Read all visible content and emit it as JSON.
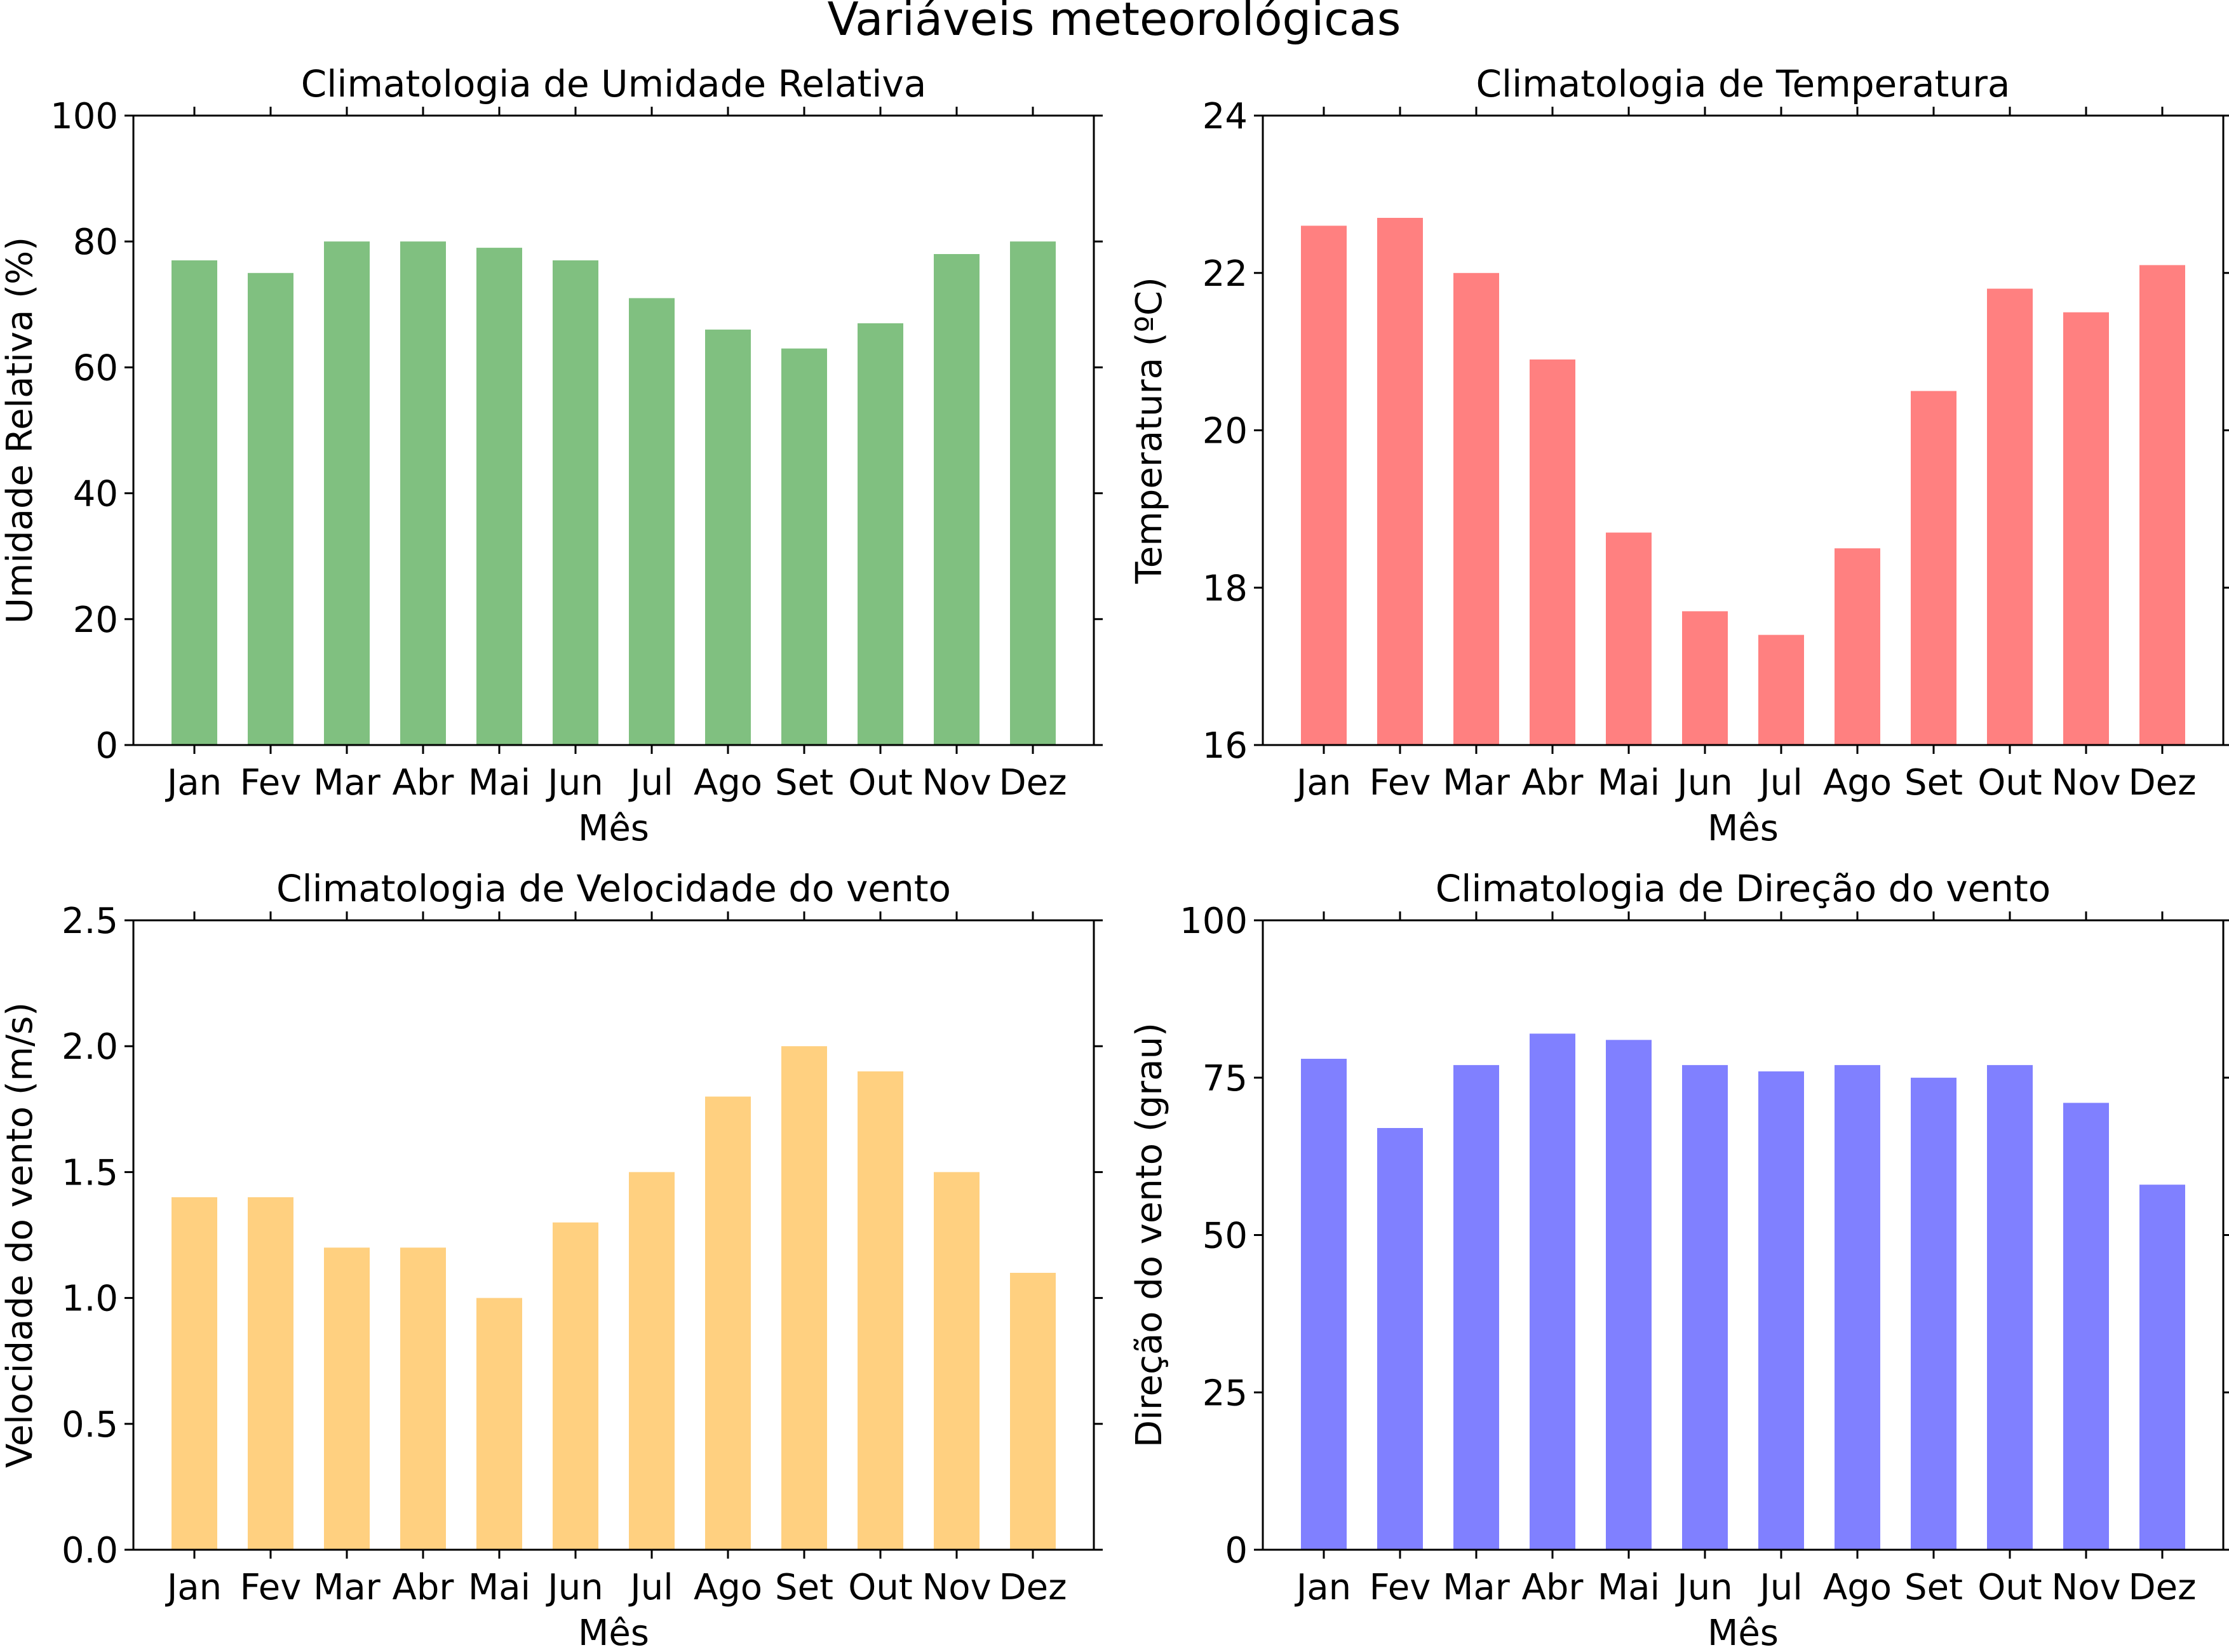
{
  "figure": {
    "title": "Variáveis meteorológicas"
  },
  "chart_data": [
    {
      "type": "bar",
      "title": "Climatologia de Umidade Relativa",
      "xlabel": "Mês",
      "ylabel": "Umidade Relativa (%)",
      "categories": [
        "Jan",
        "Fev",
        "Mar",
        "Abr",
        "Mai",
        "Jun",
        "Jul",
        "Ago",
        "Set",
        "Out",
        "Nov",
        "Dez"
      ],
      "values": [
        77,
        75,
        80,
        80,
        79,
        77,
        71,
        66,
        63,
        67,
        78,
        80
      ],
      "ylim": [
        0,
        100
      ],
      "yticks": [
        0,
        20,
        40,
        60,
        80,
        100
      ],
      "ytick_labels": [
        "0",
        "20",
        "40",
        "60",
        "80",
        "100"
      ],
      "color": "#80c080",
      "grid": false
    },
    {
      "type": "bar",
      "title": "Climatologia de Temperatura",
      "xlabel": "Mês",
      "ylabel": "Temperatura (ºC)",
      "categories": [
        "Jan",
        "Fev",
        "Mar",
        "Abr",
        "Mai",
        "Jun",
        "Jul",
        "Ago",
        "Set",
        "Out",
        "Nov",
        "Dez"
      ],
      "values": [
        22.6,
        22.7,
        22.0,
        20.9,
        18.7,
        17.7,
        17.4,
        18.5,
        20.5,
        21.8,
        21.5,
        22.1
      ],
      "ylim": [
        16,
        24
      ],
      "yticks": [
        16,
        18,
        20,
        22,
        24
      ],
      "ytick_labels": [
        "16",
        "18",
        "20",
        "22",
        "24"
      ],
      "color": "#ff8080",
      "grid": false
    },
    {
      "type": "bar",
      "title": "Climatologia de Velocidade do vento",
      "xlabel": "Mês",
      "ylabel": "Velocidade do vento (m/s)",
      "categories": [
        "Jan",
        "Fev",
        "Mar",
        "Abr",
        "Mai",
        "Jun",
        "Jul",
        "Ago",
        "Set",
        "Out",
        "Nov",
        "Dez"
      ],
      "values": [
        1.4,
        1.4,
        1.2,
        1.2,
        1.0,
        1.3,
        1.5,
        1.8,
        2.0,
        1.9,
        1.5,
        1.1
      ],
      "ylim": [
        0,
        2.5
      ],
      "yticks": [
        0,
        0.5,
        1.0,
        1.5,
        2.0,
        2.5
      ],
      "ytick_labels": [
        "0.0",
        "0.5",
        "1.0",
        "1.5",
        "2.0",
        "2.5"
      ],
      "color": "#ffd080",
      "grid": false
    },
    {
      "type": "bar",
      "title": "Climatologia de Direção do vento",
      "xlabel": "Mês",
      "ylabel": "Direção do vento (grau)",
      "categories": [
        "Jan",
        "Fev",
        "Mar",
        "Abr",
        "Mai",
        "Jun",
        "Jul",
        "Ago",
        "Set",
        "Out",
        "Nov",
        "Dez"
      ],
      "values": [
        78,
        67,
        77,
        82,
        81,
        77,
        76,
        77,
        75,
        77,
        71,
        58
      ],
      "ylim": [
        0,
        100
      ],
      "yticks": [
        0,
        25,
        50,
        75,
        100
      ],
      "ytick_labels": [
        "0",
        "25",
        "50",
        "75",
        "100"
      ],
      "color": "#8080ff",
      "grid": false
    }
  ]
}
